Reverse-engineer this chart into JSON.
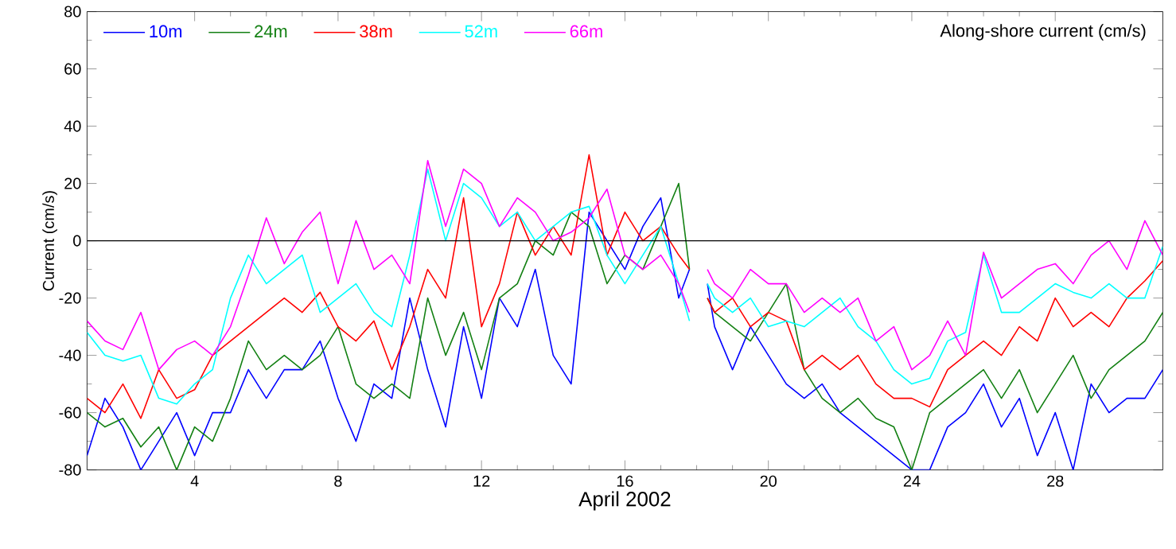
{
  "chart_data": {
    "type": "line",
    "title": "Along-shore current (cm/s)",
    "xlabel": "April 2002",
    "ylabel": "Current (cm/s)",
    "x": [
      1,
      1.5,
      2,
      2.5,
      3,
      3.5,
      4,
      4.5,
      5,
      5.5,
      6,
      6.5,
      7,
      7.5,
      8,
      8.5,
      9,
      9.5,
      10,
      10.5,
      11,
      11.5,
      12,
      12.5,
      13,
      13.5,
      14,
      14.5,
      15,
      15.5,
      16,
      16.5,
      17,
      17.5,
      17.8,
      18.0,
      18.3,
      18.5,
      19,
      19.5,
      20,
      20.5,
      21,
      21.5,
      22,
      22.5,
      23,
      23.5,
      24,
      24.5,
      25,
      25.5,
      26,
      26.5,
      27,
      27.5,
      28,
      28.5,
      29,
      29.5,
      30,
      30.5,
      31
    ],
    "series": [
      {
        "name": "10m",
        "color": "#0000ff",
        "values": [
          -75,
          -55,
          -65,
          -80,
          -70,
          -60,
          -75,
          -60,
          -60,
          -45,
          -55,
          -45,
          -45,
          -35,
          -55,
          -70,
          -50,
          -55,
          -20,
          -45,
          -65,
          -30,
          -55,
          -20,
          -30,
          -10,
          -40,
          -50,
          10,
          0,
          -10,
          5,
          15,
          -20,
          -10,
          null,
          -15,
          -30,
          -45,
          -30,
          -40,
          -50,
          -55,
          -50,
          -60,
          -65,
          -70,
          -75,
          -80,
          -80,
          -65,
          -60,
          -50,
          -65,
          -55,
          -75,
          -60,
          -80,
          -50,
          -60,
          -55,
          -55,
          -45
        ]
      },
      {
        "name": "24m",
        "color": "#138013",
        "values": [
          -60,
          -65,
          -62,
          -72,
          -65,
          -80,
          -65,
          -70,
          -55,
          -35,
          -45,
          -40,
          -45,
          -40,
          -30,
          -50,
          -55,
          -50,
          -55,
          -20,
          -40,
          -25,
          -45,
          -20,
          -15,
          0,
          -5,
          10,
          5,
          -15,
          -5,
          -10,
          5,
          20,
          -10,
          null,
          -20,
          -25,
          -30,
          -35,
          -25,
          -15,
          -45,
          -55,
          -60,
          -55,
          -62,
          -65,
          -80,
          -60,
          -55,
          -50,
          -45,
          -55,
          -45,
          -60,
          -50,
          -40,
          -55,
          -45,
          -40,
          -35,
          -25
        ]
      },
      {
        "name": "38m",
        "color": "#ff0000",
        "values": [
          -55,
          -60,
          -50,
          -62,
          -45,
          -55,
          -52,
          -40,
          -35,
          -30,
          -25,
          -20,
          -25,
          -18,
          -30,
          -35,
          -28,
          -45,
          -30,
          -10,
          -20,
          15,
          -30,
          -15,
          10,
          -5,
          5,
          -5,
          30,
          -5,
          10,
          0,
          5,
          -5,
          -10,
          null,
          -20,
          -25,
          -20,
          -30,
          -25,
          -28,
          -45,
          -40,
          -45,
          -40,
          -50,
          -55,
          -55,
          -58,
          -45,
          -40,
          -35,
          -40,
          -30,
          -35,
          -20,
          -30,
          -25,
          -30,
          -20,
          -14,
          -7
        ]
      },
      {
        "name": "52m",
        "color": "#00ffff",
        "values": [
          -32,
          -40,
          -42,
          -40,
          -55,
          -57,
          -50,
          -45,
          -20,
          -5,
          -15,
          -10,
          -5,
          -25,
          -20,
          -15,
          -25,
          -30,
          -5,
          25,
          0,
          20,
          15,
          5,
          10,
          0,
          5,
          10,
          12,
          -5,
          -15,
          -5,
          5,
          -15,
          -28,
          null,
          -15,
          -20,
          -25,
          -20,
          -30,
          -28,
          -30,
          -25,
          -20,
          -30,
          -35,
          -45,
          -50,
          -48,
          -35,
          -32,
          -5,
          -25,
          -25,
          -20,
          -15,
          -18,
          -20,
          -15,
          -20,
          -20,
          -2
        ]
      },
      {
        "name": "66m",
        "color": "#ff00ff",
        "values": [
          -28,
          -35,
          -38,
          -25,
          -45,
          -38,
          -35,
          -40,
          -30,
          -12,
          8,
          -8,
          3,
          10,
          -15,
          7,
          -10,
          -5,
          -15,
          28,
          5,
          25,
          20,
          5,
          15,
          10,
          0,
          3,
          8,
          18,
          -5,
          -10,
          -5,
          -15,
          -25,
          null,
          -10,
          -15,
          -20,
          -10,
          -15,
          -15,
          -25,
          -20,
          -25,
          -20,
          -35,
          -30,
          -45,
          -40,
          -28,
          -40,
          -4,
          -20,
          -15,
          -10,
          -8,
          -15,
          -5,
          0,
          -10,
          7,
          -5
        ]
      }
    ],
    "xlim": [
      1,
      31
    ],
    "ylim": [
      -80,
      80
    ],
    "xticks": [
      4,
      8,
      12,
      16,
      20,
      24,
      28
    ],
    "yticks": [
      -80,
      -60,
      -40,
      -20,
      0,
      20,
      40,
      60,
      80
    ],
    "ref_lines": [
      {
        "axis": "y",
        "value": 0,
        "color": "#000000"
      }
    ],
    "legend": "top left"
  }
}
